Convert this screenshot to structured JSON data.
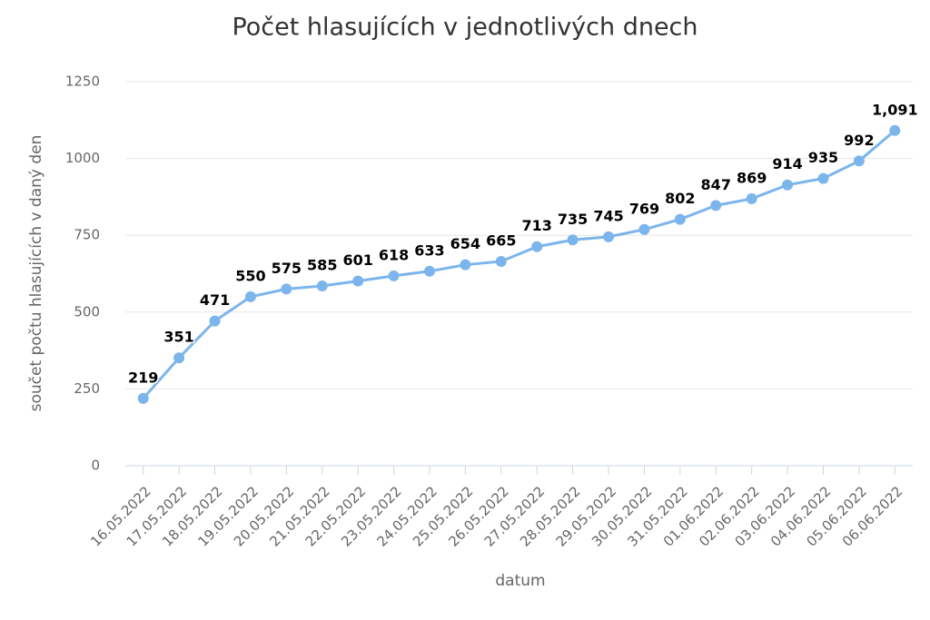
{
  "chart_data": {
    "type": "line",
    "title": "Počet hlasujících v jednotlivých dnech",
    "x_label": "datum",
    "y_label": "součet počtu hlasujících v daný den",
    "categories": [
      "16.05.2022",
      "17.05.2022",
      "18.05.2022",
      "19.05.2022",
      "20.05.2022",
      "21.05.2022",
      "22.05.2022",
      "23.05.2022",
      "24.05.2022",
      "25.05.2022",
      "26.05.2022",
      "27.05.2022",
      "28.05.2022",
      "29.05.2022",
      "30.05.2022",
      "31.05.2022",
      "01.06.2022",
      "02.06.2022",
      "03.06.2022",
      "04.06.2022",
      "05.06.2022",
      "06.06.2022"
    ],
    "values": [
      219,
      351,
      471,
      550,
      575,
      585,
      601,
      618,
      633,
      654,
      665,
      713,
      735,
      745,
      769,
      802,
      847,
      869,
      914,
      935,
      992,
      1091
    ],
    "value_labels": [
      "219",
      "351",
      "471",
      "550",
      "575",
      "585",
      "601",
      "618",
      "633",
      "654",
      "665",
      "713",
      "735",
      "745",
      "769",
      "802",
      "847",
      "869",
      "914",
      "935",
      "992",
      "1,091"
    ],
    "color": "#7cb5ec",
    "ylim": [
      0,
      1250
    ],
    "yticks": [
      0,
      250,
      500,
      750,
      1000,
      1250
    ],
    "grid": true
  }
}
